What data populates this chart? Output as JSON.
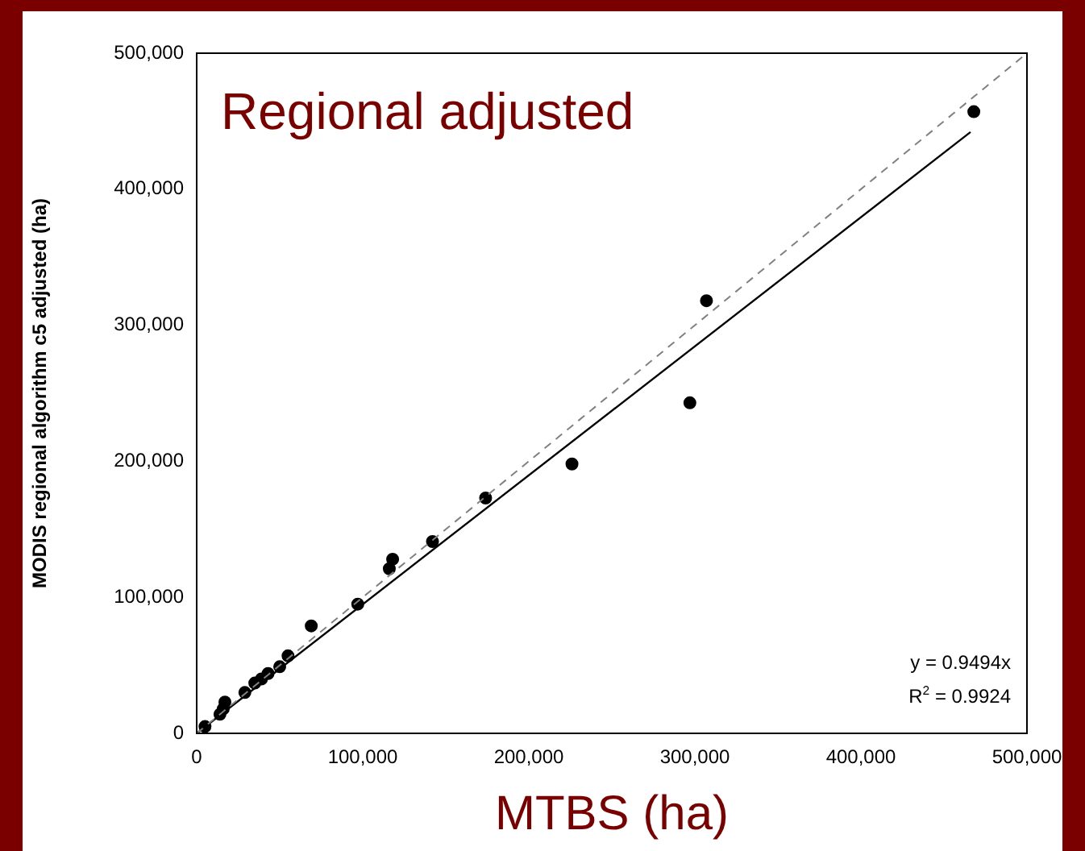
{
  "chart_data": {
    "type": "scatter",
    "title": "Regional adjusted",
    "xlabel": "MTBS (ha)",
    "ylabel": "MODIS regional algorithm c5 adjusted (ha)",
    "xlim": [
      0,
      500000
    ],
    "ylim": [
      0,
      500000
    ],
    "xticks": [
      {
        "value": 0,
        "label": "0"
      },
      {
        "value": 100000,
        "label": "100,000"
      },
      {
        "value": 200000,
        "label": "200,000"
      },
      {
        "value": 300000,
        "label": "300,000"
      },
      {
        "value": 400000,
        "label": "400,000"
      },
      {
        "value": 500000,
        "label": "500,000"
      }
    ],
    "yticks": [
      {
        "value": 0,
        "label": "0"
      },
      {
        "value": 100000,
        "label": "100,000"
      },
      {
        "value": 200000,
        "label": "200,000"
      },
      {
        "value": 300000,
        "label": "300,000"
      },
      {
        "value": 400000,
        "label": "400,000"
      },
      {
        "value": 500000,
        "label": "500,000"
      }
    ],
    "grid": false,
    "annotations": [
      "y = 0.9494x",
      "R$^{2}$ = 0.9924"
    ],
    "series": [
      {
        "type": "line",
        "marker": "none",
        "color": "#808080",
        "line_style": "dashed",
        "x": [
          0,
          500000
        ],
        "values": [
          0,
          500000
        ]
      },
      {
        "type": "line",
        "marker": "none",
        "color": "#000000",
        "line_style": "solid",
        "x": [
          0,
          466000
        ],
        "values": [
          0,
          442000
        ]
      },
      {
        "marker": "circle",
        "color": "#000000",
        "x": [
          468000,
          307000,
          297000,
          226000,
          174000,
          142000,
          118000,
          116000,
          97000,
          69000,
          55000,
          50000,
          43000,
          39000,
          35000,
          32000,
          29000,
          19000,
          17000,
          16000,
          14000,
          10000,
          7000,
          5000
        ],
        "values": [
          457000,
          318000,
          243000,
          198000,
          173000,
          141000,
          128000,
          121000,
          95000,
          79000,
          57000,
          49000,
          44000,
          40000,
          37000,
          null,
          30000,
          null,
          23000,
          18000,
          14000,
          null,
          null,
          5000
        ]
      }
    ]
  }
}
